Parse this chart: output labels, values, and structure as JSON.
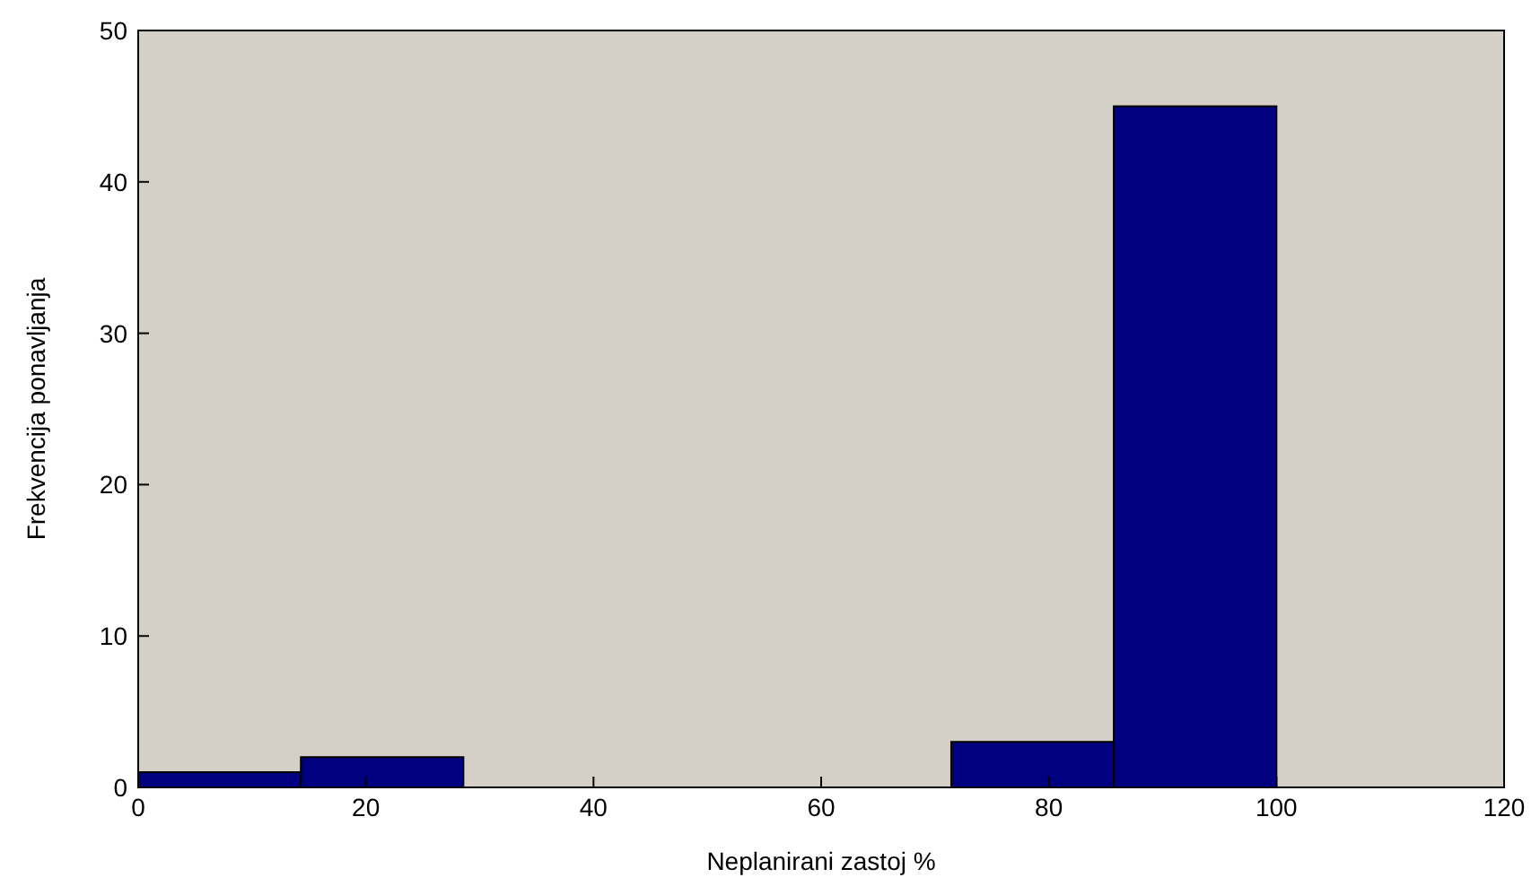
{
  "chart_data": {
    "type": "histogram",
    "xlabel": "Neplanirani zastoj %",
    "ylabel": "Frekvencija ponavljanja",
    "bins": [
      0,
      14.29,
      28.57,
      42.86,
      57.14,
      71.43,
      85.71,
      100
    ],
    "values": [
      1,
      2,
      0,
      0,
      0,
      3,
      45
    ],
    "color": "#000080",
    "xlim": [
      0,
      120
    ],
    "xticks": [
      0,
      20,
      40,
      60,
      80,
      100,
      120
    ],
    "ylim": [
      0,
      50
    ],
    "yticks": [
      0,
      10,
      20,
      30,
      40,
      50
    ]
  }
}
